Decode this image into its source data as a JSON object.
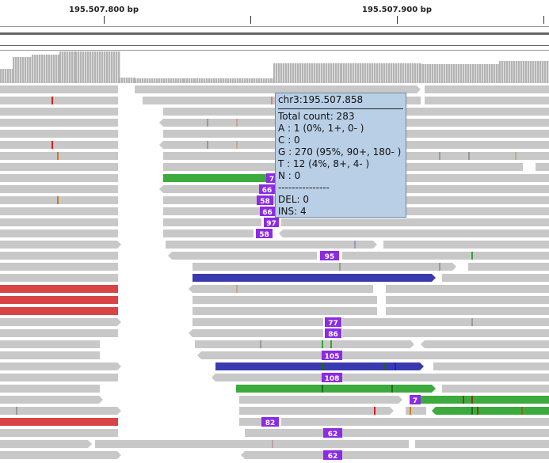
{
  "ruler": {
    "labels": [
      "195.507.800 bp",
      "195.507.900 bp"
    ]
  },
  "colors": {
    "read": "#c8c8c8",
    "read_stroke": "#b2b2b2",
    "mismatch_A": "#2fa42f",
    "mismatch_C": "#1f1fd6",
    "mismatch_G": "#d07a1a",
    "mismatch_T": "#e01b1b",
    "insertion": "#8b2be2",
    "red_read": "#d94545",
    "green_read": "#3caa3c",
    "blue_read": "#3a3ab0",
    "coverage": "#b4b4b4",
    "tooltip_bg": "#b9cfe6"
  },
  "insertion_labels": [
    "7",
    "66",
    "58",
    "66",
    "97",
    "58",
    "95",
    "77",
    "86",
    "105",
    "108",
    "7",
    "82",
    "62",
    "62"
  ],
  "tooltip": {
    "position": "chr3:195.507.858",
    "total": "Total count: 283",
    "a": "A : 1 (0%, 1+, 0- )",
    "c": "C : 0",
    "g": "G : 270 (95%, 90+, 180- )",
    "t": "T : 12 (4%, 8+, 4- )",
    "n": "N : 0",
    "divider": "---------------",
    "del": "DEL: 0",
    "ins": "INS: 4"
  }
}
